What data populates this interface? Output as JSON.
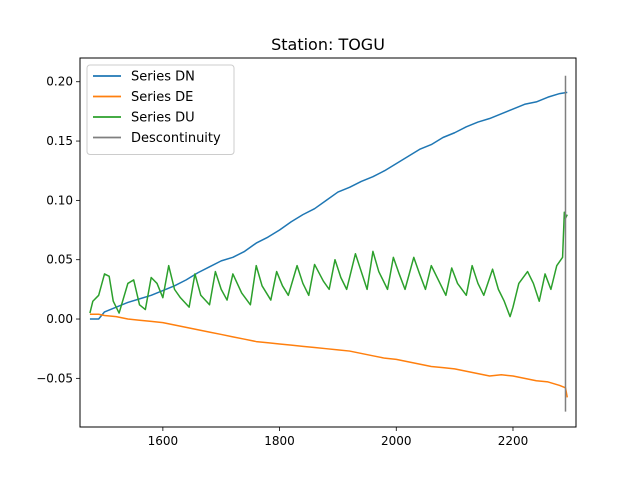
{
  "chart_data": {
    "type": "line",
    "title": "Station: TOGU",
    "xlabel": "",
    "ylabel": "",
    "xlim": [
      1458,
      2308
    ],
    "ylim": [
      -0.091,
      0.22
    ],
    "xticks": [
      1600,
      1800,
      2000,
      2200
    ],
    "yticks": [
      -0.05,
      0.0,
      0.05,
      0.1,
      0.15,
      0.2
    ],
    "ytick_labels": [
      "−0.05",
      "0.00",
      "0.05",
      "0.10",
      "0.15",
      "0.20"
    ],
    "grid": false,
    "legend_position": "top-left",
    "series": [
      {
        "name": "Series DN",
        "color": "#1f77b4",
        "x": [
          1475,
          1490,
          1500,
          1520,
          1540,
          1560,
          1580,
          1600,
          1620,
          1640,
          1660,
          1680,
          1700,
          1720,
          1740,
          1760,
          1780,
          1800,
          1820,
          1840,
          1860,
          1880,
          1900,
          1920,
          1940,
          1960,
          1980,
          2000,
          2020,
          2040,
          2060,
          2080,
          2100,
          2120,
          2140,
          2160,
          2180,
          2200,
          2220,
          2240,
          2260,
          2280,
          2293
        ],
        "y": [
          0.0,
          0.0,
          0.006,
          0.01,
          0.014,
          0.017,
          0.02,
          0.024,
          0.028,
          0.033,
          0.039,
          0.044,
          0.049,
          0.052,
          0.057,
          0.064,
          0.069,
          0.075,
          0.082,
          0.088,
          0.093,
          0.1,
          0.107,
          0.111,
          0.116,
          0.12,
          0.125,
          0.131,
          0.137,
          0.143,
          0.147,
          0.153,
          0.157,
          0.162,
          0.166,
          0.169,
          0.173,
          0.177,
          0.181,
          0.183,
          0.187,
          0.19,
          0.191
        ]
      },
      {
        "name": "Series DE",
        "color": "#ff7f0e",
        "x": [
          1475,
          1490,
          1500,
          1520,
          1540,
          1560,
          1580,
          1600,
          1620,
          1640,
          1660,
          1680,
          1700,
          1720,
          1740,
          1760,
          1780,
          1800,
          1820,
          1840,
          1860,
          1880,
          1900,
          1920,
          1940,
          1960,
          1980,
          2000,
          2020,
          2040,
          2060,
          2080,
          2100,
          2120,
          2140,
          2160,
          2180,
          2200,
          2220,
          2240,
          2260,
          2280,
          2290,
          2293
        ],
        "y": [
          0.004,
          0.004,
          0.003,
          0.002,
          0.0,
          -0.001,
          -0.002,
          -0.003,
          -0.005,
          -0.007,
          -0.009,
          -0.011,
          -0.013,
          -0.015,
          -0.017,
          -0.019,
          -0.02,
          -0.021,
          -0.022,
          -0.023,
          -0.024,
          -0.025,
          -0.026,
          -0.027,
          -0.029,
          -0.031,
          -0.033,
          -0.034,
          -0.036,
          -0.038,
          -0.04,
          -0.041,
          -0.042,
          -0.044,
          -0.046,
          -0.048,
          -0.047,
          -0.048,
          -0.05,
          -0.052,
          -0.053,
          -0.056,
          -0.058,
          -0.066
        ]
      },
      {
        "name": "Series DU",
        "color": "#2ca02c",
        "x": [
          1475,
          1480,
          1490,
          1500,
          1508,
          1515,
          1525,
          1540,
          1550,
          1560,
          1570,
          1580,
          1590,
          1600,
          1610,
          1620,
          1630,
          1645,
          1655,
          1665,
          1680,
          1690,
          1700,
          1710,
          1720,
          1735,
          1750,
          1760,
          1770,
          1785,
          1795,
          1805,
          1815,
          1830,
          1840,
          1850,
          1860,
          1875,
          1885,
          1895,
          1905,
          1915,
          1930,
          1940,
          1950,
          1960,
          1970,
          1985,
          1995,
          2005,
          2015,
          2030,
          2040,
          2050,
          2060,
          2075,
          2085,
          2095,
          2105,
          2120,
          2130,
          2140,
          2150,
          2165,
          2175,
          2185,
          2195,
          2200,
          2210,
          2225,
          2235,
          2245,
          2255,
          2265,
          2275,
          2285,
          2288,
          2290,
          2293
        ],
        "y": [
          0.005,
          0.015,
          0.02,
          0.038,
          0.036,
          0.015,
          0.005,
          0.03,
          0.033,
          0.012,
          0.008,
          0.035,
          0.03,
          0.018,
          0.045,
          0.025,
          0.018,
          0.01,
          0.038,
          0.02,
          0.012,
          0.04,
          0.025,
          0.016,
          0.038,
          0.022,
          0.012,
          0.045,
          0.028,
          0.016,
          0.04,
          0.028,
          0.02,
          0.045,
          0.03,
          0.02,
          0.046,
          0.032,
          0.025,
          0.05,
          0.035,
          0.025,
          0.055,
          0.04,
          0.025,
          0.057,
          0.04,
          0.025,
          0.052,
          0.038,
          0.025,
          0.052,
          0.038,
          0.025,
          0.045,
          0.03,
          0.02,
          0.043,
          0.03,
          0.02,
          0.045,
          0.03,
          0.02,
          0.042,
          0.025,
          0.015,
          0.002,
          0.01,
          0.03,
          0.04,
          0.03,
          0.015,
          0.038,
          0.025,
          0.045,
          0.052,
          0.09,
          0.085,
          0.088
        ]
      }
    ],
    "vlines": [
      {
        "name": "Descontinuity",
        "color": "#7f7f7f",
        "x": 2290,
        "ymin": -0.078,
        "ymax": 0.205
      }
    ]
  }
}
